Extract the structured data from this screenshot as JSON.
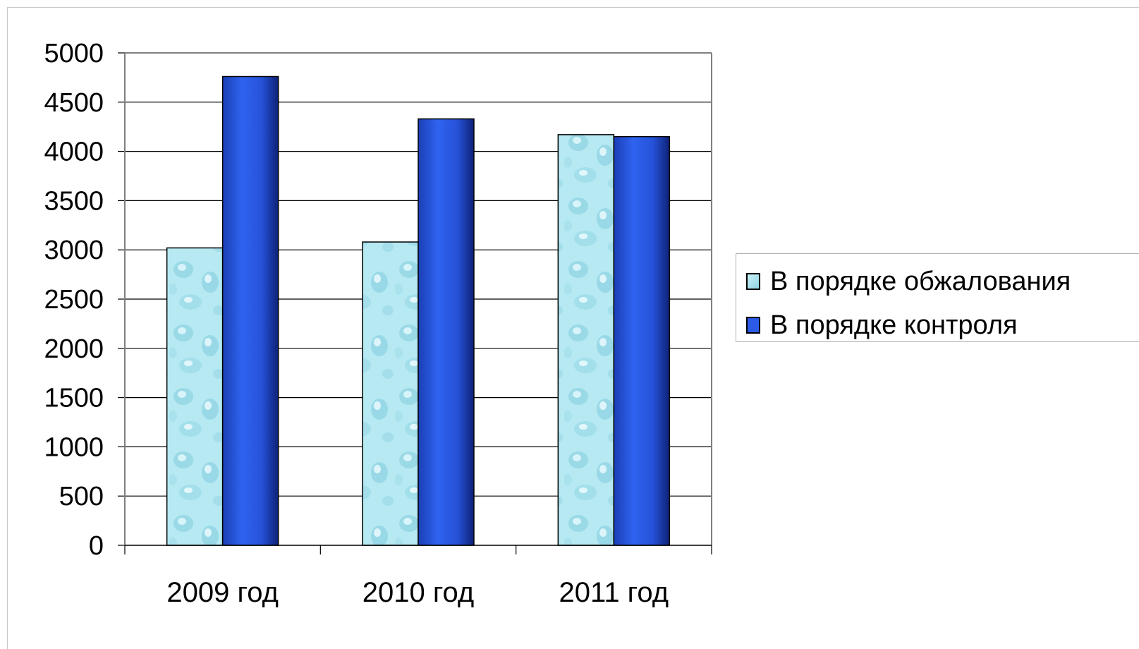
{
  "chart_data": {
    "type": "bar",
    "categories": [
      "2009 год",
      "2010 год",
      "2011 год"
    ],
    "series": [
      {
        "name": "В порядке обжалования",
        "values": [
          3020,
          3080,
          4170
        ],
        "color": "#a9e4ee"
      },
      {
        "name": "В порядке контроля",
        "values": [
          4760,
          4330,
          4150
        ],
        "color": "#2b5be6"
      }
    ],
    "ylim": [
      0,
      5000
    ],
    "yticks": [
      0,
      500,
      1000,
      1500,
      2000,
      2500,
      3000,
      3500,
      4000,
      4500,
      5000
    ],
    "grid": true,
    "legend_position": "right",
    "title": "",
    "xlabel": "",
    "ylabel": ""
  }
}
